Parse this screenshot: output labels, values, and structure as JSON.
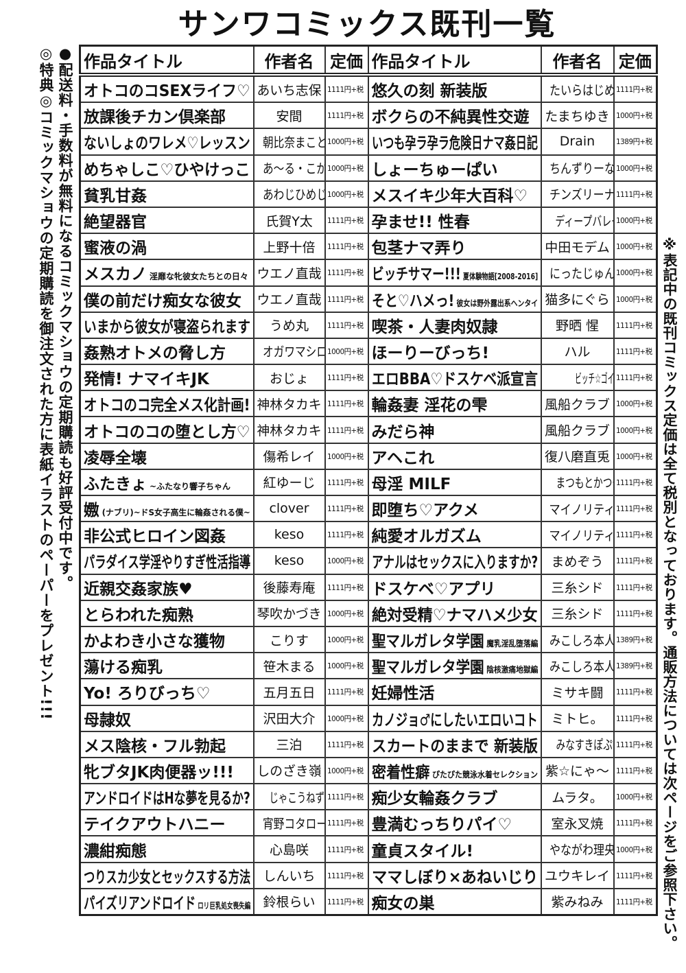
{
  "page_title": "サンワコミックス既刊一覧",
  "side_notes": {
    "left_1": "●配送料・手数料が無料になるコミックマショウの定期購読も好評受付中です。",
    "left_2": "◎特典◎コミックマショウの定期購読を御注文された方に表紙イラストのペーパーをプレゼント!!!",
    "right": "※表記中の既刊コミックス定価は全て税別となっております。通販方法については次ページをご参照下さい。"
  },
  "table": {
    "headers": {
      "title": "作品タイトル",
      "author": "作者名",
      "price": "定価"
    },
    "left": [
      {
        "title": "オトコのコSEXライフ♡",
        "author": "あいち志保",
        "price": "1111円+税"
      },
      {
        "title": "放課後チカン倶楽部",
        "author": "安間",
        "price": "1111円+税"
      },
      {
        "title": "ないしょのワレメ♡レッスン",
        "author": "朝比奈まこと",
        "price": "1000円+税"
      },
      {
        "title": "めちゃしこ♡ひやけっこ",
        "author": "あ〜る・こが",
        "price": "1000円+税"
      },
      {
        "title": "貧乳甘姦",
        "author": "あわじひめじ",
        "price": "1000円+税"
      },
      {
        "title": "絶望器官",
        "author": "氏賀Y太",
        "price": "1111円+税"
      },
      {
        "title": "蜜液の渦",
        "author": "上野十倍",
        "price": "1111円+税"
      },
      {
        "title": "メスカノ",
        "sub": "淫靡な牝彼女たちとの日々",
        "author": "ウエノ直哉",
        "price": "1111円+税"
      },
      {
        "title": "僕の前だけ痴女な彼女",
        "author": "ウエノ直哉",
        "price": "1111円+税"
      },
      {
        "title": "いまから彼女が寝盗られます",
        "author": "うめ丸",
        "price": "1111円+税"
      },
      {
        "title": "姦熟オトメの脅し方",
        "author": "オガワマシロ",
        "price": "1000円+税"
      },
      {
        "title": "発情! ナマイキJK",
        "author": "おじょ",
        "price": "1111円+税"
      },
      {
        "title": "オトコのコ完全メス化計画!",
        "author": "神林タカキ",
        "price": "1111円+税"
      },
      {
        "title": "オトコのコの堕とし方♡",
        "author": "神林タカキ",
        "price": "1111円+税"
      },
      {
        "title": "凌辱全壊",
        "author": "傷希レイ",
        "price": "1000円+税"
      },
      {
        "title": "ふたきょ",
        "sub": "~ふたなり響子ちゃん",
        "author": "紅ゆーじ",
        "price": "1111円+税"
      },
      {
        "title": "嫐",
        "sub": "(ナブリ)~ドS女子高生に輪姦される僕~",
        "author": "clover",
        "price": "1111円+税"
      },
      {
        "title": "非公式ヒロイン図姦",
        "author": "keso",
        "price": "1111円+税"
      },
      {
        "title": "パラダイス学淫やりすぎ性活指導",
        "author": "keso",
        "price": "1000円+税"
      },
      {
        "title": "近親交姦家族♥",
        "author": "後藤寿庵",
        "price": "1111円+税"
      },
      {
        "title": "とらわれた痴熟",
        "author": "琴吹かづき",
        "price": "1000円+税"
      },
      {
        "title": "かよわき小さな獲物",
        "author": "こりす",
        "price": "1000円+税"
      },
      {
        "title": "蕩ける痴乳",
        "author": "笹木まる",
        "price": "1000円+税"
      },
      {
        "title": "Yo! ろりびっち♡",
        "author": "五月五日",
        "price": "1111円+税"
      },
      {
        "title": "母隷奴",
        "author": "沢田大介",
        "price": "1000円+税"
      },
      {
        "title": "メス陰核・フル勃起",
        "author": "三泊",
        "price": "1111円+税"
      },
      {
        "title": "牝ブタJK肉便器ッ!!!",
        "author": "しのざき嶺",
        "price": "1000円+税"
      },
      {
        "title": "アンドロイドはHな夢を見るか?",
        "author": "じゃこうねずみ",
        "price": "1111円+税"
      },
      {
        "title": "テイクアウトハニー",
        "author": "宵野コタロー",
        "price": "1111円+税"
      },
      {
        "title": "濃紺痴態",
        "author": "心島咲",
        "price": "1111円+税"
      },
      {
        "title": "つりスカ少女とセックスする方法",
        "author": "しんいち",
        "price": "1111円+税"
      },
      {
        "title": "パイズリアンドロイド",
        "sub": "ロリ巨乳処女喪失編",
        "author": "鈴根らい",
        "price": "1111円+税"
      }
    ],
    "right": [
      {
        "title": "悠久の刻 新装版",
        "author": "たいらはじめ",
        "price": "1111円+税"
      },
      {
        "title": "ボクらの不純異性交遊",
        "author": "たまちゆき",
        "price": "1000円+税"
      },
      {
        "title": "いつも孕ラ孕ラ危険日ナマ姦日記",
        "author": "Drain",
        "price": "1389円+税"
      },
      {
        "title": "しょーちゅーぱい",
        "author": "ちんずりーな",
        "price": "1000円+税"
      },
      {
        "title": "メスイキ少年大百科♡",
        "author": "チンズリーナ",
        "price": "1111円+税"
      },
      {
        "title": "孕ませ!! 性春",
        "author": "ディープバレー",
        "price": "1000円+税"
      },
      {
        "title": "包茎ナマ弄り",
        "author": "中田モデム",
        "price": "1000円+税"
      },
      {
        "title": "ビッチサマー!!!",
        "sub": "夏体験物語[2008-2016]",
        "author": "にったじゅん",
        "price": "1000円+税"
      },
      {
        "title": "そと♡ハメっ!",
        "sub": "彼女は野外露出系ヘンタイ",
        "author": "猫多にぐら",
        "price": "1000円+税"
      },
      {
        "title": "喫茶・人妻肉奴隷",
        "author": "野晒 惺",
        "price": "1111円+税"
      },
      {
        "title": "ほーりーびっち!",
        "author": "ハル",
        "price": "1111円+税"
      },
      {
        "title": "エロBBA♡ドスケベ派宣言",
        "author": "ビッチ☆ゴイゴスター",
        "price": "1111円+税"
      },
      {
        "title": "輪姦妻 淫花の雫",
        "author": "風船クラブ",
        "price": "1000円+税"
      },
      {
        "title": "みだら神",
        "author": "風船クラブ",
        "price": "1000円+税"
      },
      {
        "title": "アヘこれ",
        "author": "復八磨直兎",
        "price": "1000円+税"
      },
      {
        "title": "母淫 MILF",
        "author": "まつもとかつや",
        "price": "1111円+税"
      },
      {
        "title": "即堕ち♡アクメ",
        "author": "マイノリティ",
        "price": "1111円+税"
      },
      {
        "title": "純愛オルガズム",
        "author": "マイノリティ",
        "price": "1111円+税"
      },
      {
        "title": "アナルはセックスに入りますか?",
        "author": "まめぞう",
        "price": "1111円+税"
      },
      {
        "title": "ドスケベ♡アプリ",
        "author": "三糸シド",
        "price": "1111円+税"
      },
      {
        "title": "絶対受精♡ナマハメ少女",
        "author": "三糸シド",
        "price": "1111円+税"
      },
      {
        "title": "聖マルガレタ学園",
        "sub": "魔乳淫乱堕落編",
        "author": "みこしろ本人",
        "price": "1389円+税"
      },
      {
        "title": "聖マルガレタ学園",
        "sub": "陰核激痛地獄編",
        "author": "みこしろ本人",
        "price": "1389円+税"
      },
      {
        "title": "妊婦性活",
        "author": "ミサキ闘",
        "price": "1111円+税"
      },
      {
        "title": "カノジョ♂にしたいエロいコト",
        "author": "ミトヒ。",
        "price": "1111円+税"
      },
      {
        "title": "スカートのままで 新装版",
        "author": "みなすきぽぷり",
        "price": "1111円+税"
      },
      {
        "title": "密着性癖",
        "sub": "ぴたぴた競泳水着セレクション",
        "author": "紫☆にゃ〜",
        "price": "1111円+税"
      },
      {
        "title": "痴少女輪姦クラブ",
        "author": "ムラタ。",
        "price": "1000円+税"
      },
      {
        "title": "豊満むっちりパイ♡",
        "author": "室永叉焼",
        "price": "1111円+税"
      },
      {
        "title": "童貞スタイル!",
        "author": "やながわ理央",
        "price": "1000円+税"
      },
      {
        "title": "ママしぼり×あねいじり",
        "author": "ユウキレイ",
        "price": "1111円+税"
      },
      {
        "title": "痴女の巣",
        "author": "紫みねみ",
        "price": "1111円+税"
      }
    ]
  }
}
